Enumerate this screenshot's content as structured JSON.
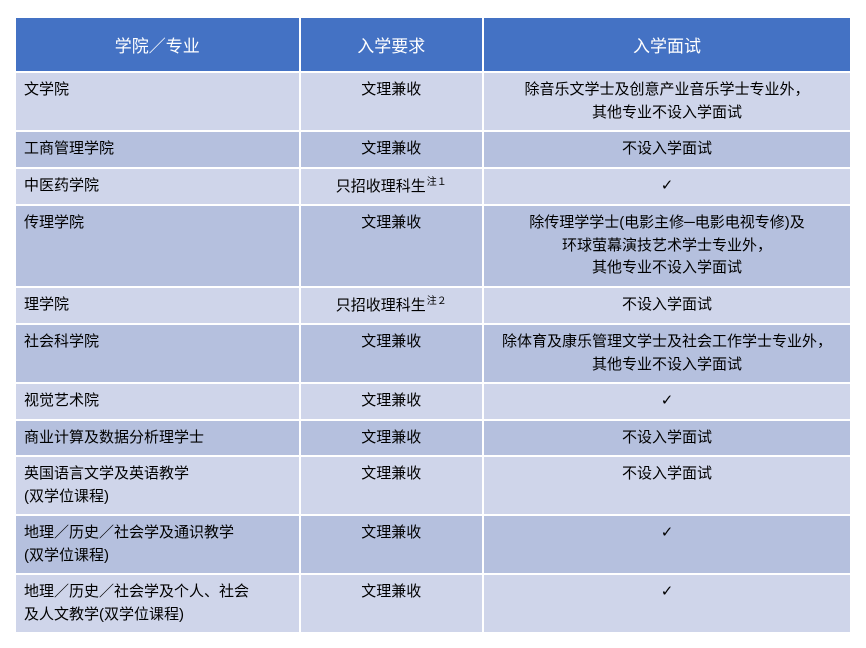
{
  "table": {
    "header_bg": "#4472c4",
    "header_fg": "#ffffff",
    "row_bg_light": "#cfd5ea",
    "row_bg_dark": "#b5c0de",
    "text_color": "#000000",
    "checkmark_glyph": "✓",
    "columns": [
      {
        "key": "school",
        "label": "学院／专业"
      },
      {
        "key": "req",
        "label": "入学要求"
      },
      {
        "key": "interview",
        "label": "入学面试"
      }
    ],
    "rows": [
      {
        "school": "文学院",
        "req": "文理兼收",
        "req_note": "",
        "interview": "除音乐文学士及创意产业音乐学士专业外，\n其他专业不设入学面试"
      },
      {
        "school": "工商管理学院",
        "req": "文理兼收",
        "req_note": "",
        "interview": "不设入学面试"
      },
      {
        "school": "中医药学院",
        "req": "只招收理科生",
        "req_note": "注１",
        "interview": "✓"
      },
      {
        "school": "传理学院",
        "req": "文理兼收",
        "req_note": "",
        "interview": "除传理学学士(电影主修─电影电视专修)及\n环球萤幕演技艺术学士专业外，\n其他专业不设入学面试"
      },
      {
        "school": "理学院",
        "req": "只招收理科生",
        "req_note": "注２",
        "interview": "不设入学面试"
      },
      {
        "school": "社会科学院",
        "req": "文理兼收",
        "req_note": "",
        "interview": "除体育及康乐管理文学士及社会工作学士专业外，\n其他专业不设入学面试"
      },
      {
        "school": "视觉艺术院",
        "req": "文理兼收",
        "req_note": "",
        "interview": "✓"
      },
      {
        "school": "商业计算及数据分析理学士",
        "req": "文理兼收",
        "req_note": "",
        "interview": "不设入学面试"
      },
      {
        "school": "英国语言文学及英语教学\n(双学位课程)",
        "req": "文理兼收",
        "req_note": "",
        "interview": "不设入学面试"
      },
      {
        "school": "地理／历史／社会学及通识教学\n(双学位课程)",
        "req": "文理兼收",
        "req_note": "",
        "interview": "✓"
      },
      {
        "school": "地理／历史／社会学及个人、社会\n及人文教学(双学位课程)",
        "req": "文理兼收",
        "req_note": "",
        "interview": "✓"
      }
    ]
  }
}
